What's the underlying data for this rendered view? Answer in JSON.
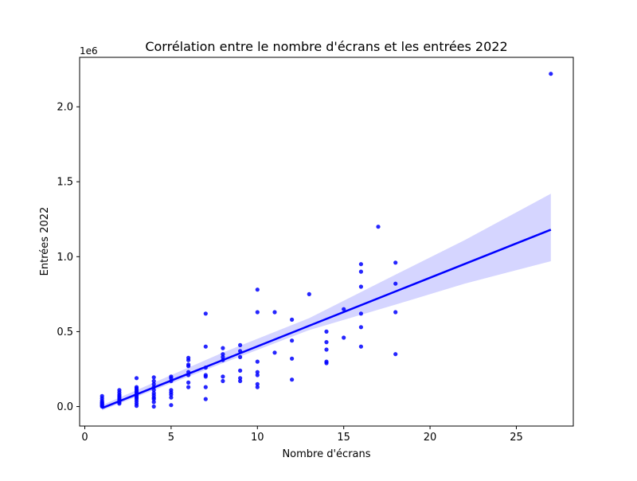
{
  "chart_data": {
    "type": "scatter",
    "title": "Corrélation entre le nombre d'écrans et les entrées 2022",
    "xlabel": "Nombre d'écrans",
    "ylabel": "Entrées 2022",
    "y_offset_label": "1e6",
    "xlim": [
      -0.3,
      28.3
    ],
    "ylim": [
      -130000,
      2330000
    ],
    "x_ticks": [
      0,
      5,
      10,
      15,
      20,
      25
    ],
    "y_ticks": [
      0,
      500000,
      1000000,
      1500000,
      2000000
    ],
    "x_tick_labels": [
      "0",
      "5",
      "10",
      "15",
      "20",
      "25"
    ],
    "y_tick_labels": [
      "0.0",
      "0.5",
      "1.0",
      "1.5",
      "2.0"
    ],
    "grid": false,
    "colors": {
      "points": "#0000ff",
      "line": "#0000ff",
      "band": "#d5d5ff"
    },
    "regression": {
      "x": [
        1,
        27
      ],
      "y": [
        -10000,
        1180000
      ],
      "ci_upper": [
        [
          1,
          10000
        ],
        [
          8,
          360000
        ],
        [
          13,
          590000
        ],
        [
          18,
          880000
        ],
        [
          22,
          1110000
        ],
        [
          27,
          1420000
        ]
      ],
      "ci_lower": [
        [
          27,
          970000
        ],
        [
          22,
          820000
        ],
        [
          18,
          680000
        ],
        [
          13,
          510000
        ],
        [
          8,
          290000
        ],
        [
          1,
          -25000
        ]
      ]
    },
    "points": [
      [
        1,
        0
      ],
      [
        1,
        5000
      ],
      [
        1,
        10000
      ],
      [
        1,
        15000
      ],
      [
        1,
        20000
      ],
      [
        1,
        25000
      ],
      [
        1,
        30000
      ],
      [
        1,
        40000
      ],
      [
        1,
        55000
      ],
      [
        1,
        70000
      ],
      [
        2,
        20000
      ],
      [
        2,
        30000
      ],
      [
        2,
        40000
      ],
      [
        2,
        50000
      ],
      [
        2,
        60000
      ],
      [
        2,
        70000
      ],
      [
        2,
        80000
      ],
      [
        2,
        95000
      ],
      [
        2,
        110000
      ],
      [
        3,
        5000
      ],
      [
        3,
        20000
      ],
      [
        3,
        35000
      ],
      [
        3,
        50000
      ],
      [
        3,
        60000
      ],
      [
        3,
        70000
      ],
      [
        3,
        80000
      ],
      [
        3,
        90000
      ],
      [
        3,
        100000
      ],
      [
        3,
        110000
      ],
      [
        3,
        120000
      ],
      [
        3,
        130000
      ],
      [
        3,
        190000
      ],
      [
        4,
        0
      ],
      [
        4,
        30000
      ],
      [
        4,
        50000
      ],
      [
        4,
        60000
      ],
      [
        4,
        75000
      ],
      [
        4,
        90000
      ],
      [
        4,
        110000
      ],
      [
        4,
        130000
      ],
      [
        4,
        150000
      ],
      [
        4,
        170000
      ],
      [
        4,
        195000
      ],
      [
        5,
        10000
      ],
      [
        5,
        60000
      ],
      [
        5,
        80000
      ],
      [
        5,
        95000
      ],
      [
        5,
        110000
      ],
      [
        5,
        170000
      ],
      [
        5,
        190000
      ],
      [
        5,
        200000
      ],
      [
        6,
        130000
      ],
      [
        6,
        160000
      ],
      [
        6,
        210000
      ],
      [
        6,
        230000
      ],
      [
        6,
        270000
      ],
      [
        6,
        280000
      ],
      [
        6,
        310000
      ],
      [
        6,
        325000
      ],
      [
        7,
        50000
      ],
      [
        7,
        130000
      ],
      [
        7,
        200000
      ],
      [
        7,
        210000
      ],
      [
        7,
        260000
      ],
      [
        7,
        400000
      ],
      [
        7,
        620000
      ],
      [
        8,
        170000
      ],
      [
        8,
        200000
      ],
      [
        8,
        310000
      ],
      [
        8,
        330000
      ],
      [
        8,
        350000
      ],
      [
        8,
        390000
      ],
      [
        9,
        170000
      ],
      [
        9,
        190000
      ],
      [
        9,
        240000
      ],
      [
        9,
        330000
      ],
      [
        9,
        370000
      ],
      [
        9,
        410000
      ],
      [
        10,
        130000
      ],
      [
        10,
        150000
      ],
      [
        10,
        210000
      ],
      [
        10,
        230000
      ],
      [
        10,
        300000
      ],
      [
        10,
        630000
      ],
      [
        10,
        780000
      ],
      [
        11,
        360000
      ],
      [
        11,
        630000
      ],
      [
        12,
        180000
      ],
      [
        12,
        320000
      ],
      [
        12,
        440000
      ],
      [
        12,
        580000
      ],
      [
        13,
        750000
      ],
      [
        14,
        290000
      ],
      [
        14,
        300000
      ],
      [
        14,
        380000
      ],
      [
        14,
        430000
      ],
      [
        14,
        500000
      ],
      [
        15,
        460000
      ],
      [
        15,
        650000
      ],
      [
        16,
        400000
      ],
      [
        16,
        530000
      ],
      [
        16,
        620000
      ],
      [
        16,
        800000
      ],
      [
        16,
        900000
      ],
      [
        16,
        950000
      ],
      [
        17,
        1200000
      ],
      [
        18,
        350000
      ],
      [
        18,
        630000
      ],
      [
        18,
        820000
      ],
      [
        18,
        960000
      ],
      [
        27,
        2220000
      ]
    ]
  }
}
